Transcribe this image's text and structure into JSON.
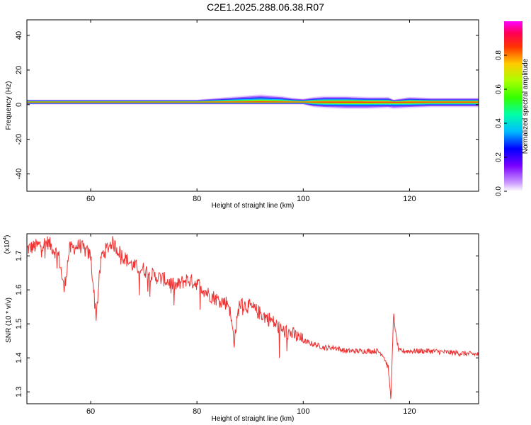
{
  "figure_title": "C2E1.2025.288.06.38.R07",
  "chart_data": [
    {
      "type": "heatmap",
      "title": "C2E1.2025.288.06.38.R07",
      "xlabel": "Height of straight line (km)",
      "ylabel": "Frequency (Hz)",
      "xlim": [
        48,
        133
      ],
      "ylim": [
        -50,
        49
      ],
      "x_ticks": [
        60,
        80,
        100,
        120
      ],
      "y_ticks": [
        -40,
        -20,
        0,
        20,
        40
      ],
      "band_center_hz": 1.5,
      "x": [
        48,
        52,
        56,
        60,
        64,
        68,
        72,
        76,
        80,
        84,
        88,
        90,
        92,
        94,
        96,
        98,
        100,
        102,
        104,
        108,
        112,
        116,
        117,
        120,
        124,
        128,
        133
      ],
      "band_upper_hz": [
        3,
        3,
        3,
        3,
        3,
        3,
        3,
        3,
        3,
        4,
        5,
        5.5,
        6,
        5.5,
        5,
        4,
        3.5,
        4.5,
        5,
        5,
        4.5,
        4.5,
        3,
        4.5,
        4,
        4,
        4
      ],
      "band_lower_hz": [
        0,
        0,
        0,
        0,
        0,
        0,
        0,
        0,
        0,
        0,
        0,
        0,
        0,
        0,
        0,
        0,
        0,
        -1.5,
        -2,
        -2.5,
        -2.5,
        -2,
        -2.5,
        -2,
        -1.5,
        -1.5,
        -1.5
      ],
      "colorbar": {
        "label": "Normalized spectral amplitude",
        "range": [
          0,
          1
        ],
        "ticks": [
          "0.0",
          "0.2",
          "0.4",
          "0.6",
          "0.8"
        ]
      }
    },
    {
      "type": "line",
      "xlabel": "Height of straight line (km)",
      "ylabel": "SNR (10 * v/v)",
      "scale_note": "(x10",
      "scale_exp": "4",
      "xlim": [
        48,
        133
      ],
      "ylim": [
        1.265,
        1.765
      ],
      "x_ticks": [
        60,
        80,
        100,
        120
      ],
      "y_ticks": [
        "1.3",
        "1.4",
        "1.5",
        "1.6",
        "1.7"
      ],
      "line_color": "#ee3333",
      "series": [
        {
          "name": "SNR",
          "x": [
            48,
            50,
            52,
            54,
            55,
            56,
            58,
            60,
            61,
            62,
            64,
            66,
            68,
            70,
            72,
            74,
            76,
            78,
            80,
            82,
            84,
            86,
            87,
            88,
            90,
            92,
            94,
            96,
            98,
            100,
            102,
            104,
            106,
            108,
            110,
            112,
            114,
            115,
            116,
            116.5,
            117,
            117.5,
            118,
            120,
            124,
            128,
            133
          ],
          "y": [
            1.72,
            1.73,
            1.74,
            1.7,
            1.6,
            1.72,
            1.73,
            1.7,
            1.52,
            1.7,
            1.74,
            1.7,
            1.67,
            1.66,
            1.64,
            1.63,
            1.61,
            1.63,
            1.62,
            1.59,
            1.57,
            1.56,
            1.45,
            1.56,
            1.55,
            1.53,
            1.51,
            1.48,
            1.47,
            1.45,
            1.44,
            1.43,
            1.43,
            1.42,
            1.42,
            1.42,
            1.42,
            1.41,
            1.37,
            1.28,
            1.53,
            1.46,
            1.42,
            1.42,
            1.42,
            1.415,
            1.41
          ]
        }
      ]
    }
  ]
}
